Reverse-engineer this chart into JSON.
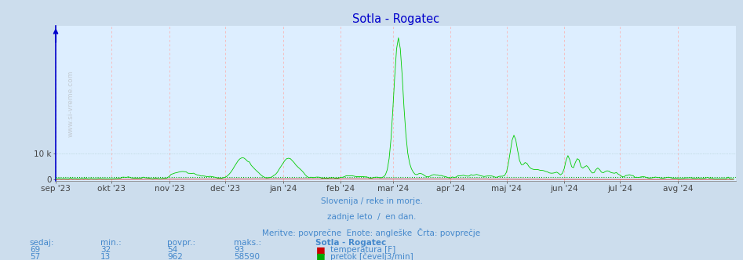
{
  "title": "Sotla - Rogatec",
  "title_color": "#0000cc",
  "bg_color": "#ccdded",
  "plot_bg_color": "#ddeeff",
  "x_labels": [
    "sep '23",
    "okt '23",
    "nov '23",
    "dec '23",
    "jan '24",
    "feb '24",
    "mar '24",
    "apr '24",
    "maj '24",
    "jun '24",
    "jul '24",
    "avg '24"
  ],
  "footer_lines": [
    "Slovenija / reke in morje.",
    "zadnje leto  /  en dan.",
    "Meritve: povprečne  Enote: angleške  Črta: povprečje"
  ],
  "footer_color": "#4488cc",
  "table_header": [
    "sedaj:",
    "min.:",
    "povpr.:",
    "maks.:",
    "Sotla - Rogatec"
  ],
  "table_row1": [
    "69",
    "32",
    "54",
    "93",
    "temperatura [F]"
  ],
  "table_row2": [
    "57",
    "13",
    "962",
    "58590",
    "pretok [čevelj3/min]"
  ],
  "table_color": "#4488cc",
  "legend_temp_color": "#cc0000",
  "legend_flow_color": "#00aa00",
  "grid_color_v": "#ffaaaa",
  "grid_color_h": "#aacccc",
  "flow_line_color": "#00cc00",
  "temp_line_color": "#cc0000",
  "avg_flow_line_color": "#00aa00",
  "axis_color": "#0000cc",
  "flow_max": 58590,
  "flow_avg": 962,
  "ylim_max": 60000
}
